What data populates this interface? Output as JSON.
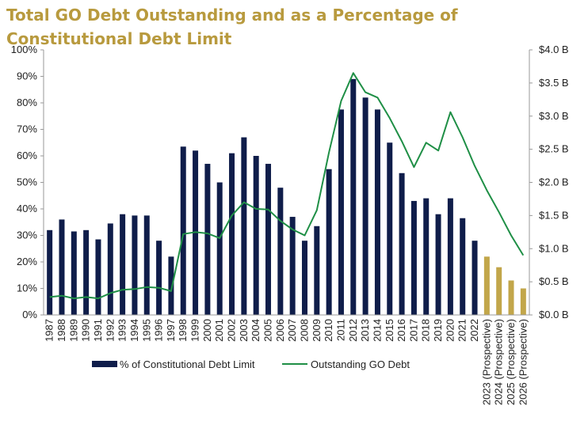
{
  "chart_data": {
    "type": "bar",
    "title": "Total GO Debt Outstanding and as a Percentage of Constitutional Debt Limit",
    "categories": [
      "1987",
      "1988",
      "1989",
      "1990",
      "1991",
      "1992",
      "1993",
      "1994",
      "1995",
      "1996",
      "1997",
      "1998",
      "1999",
      "2000",
      "2001",
      "2002",
      "2003",
      "2004",
      "2005",
      "2006",
      "2007",
      "2008",
      "2009",
      "2010",
      "2011",
      "2012",
      "2013",
      "2014",
      "2015",
      "2016",
      "2017",
      "2018",
      "2019",
      "2020",
      "2021",
      "2022",
      "2023 (Prospective)",
      "2024 (Prospective)",
      "2025 (Prospective)",
      "2026 (Prospective)"
    ],
    "series": [
      {
        "name": "% of Constitutional Debt Limit",
        "axis": "left",
        "kind": "bar",
        "values": [
          32,
          36,
          31.5,
          32,
          28.5,
          34.5,
          38,
          37.5,
          37.5,
          28,
          22,
          63.5,
          62,
          57,
          50,
          61,
          67,
          60,
          57,
          48,
          37,
          28,
          33.5,
          55,
          77.5,
          89,
          82,
          77.5,
          65,
          53.5,
          43,
          44,
          38,
          44,
          36.5,
          28,
          22,
          18,
          13,
          10
        ]
      },
      {
        "name": "Outstanding GO Debt",
        "axis": "right",
        "kind": "line",
        "values": [
          0.27,
          0.29,
          0.25,
          0.27,
          0.25,
          0.33,
          0.38,
          0.39,
          0.42,
          0.41,
          0.36,
          1.22,
          1.25,
          1.23,
          1.16,
          1.5,
          1.7,
          1.6,
          1.59,
          1.42,
          1.29,
          1.2,
          1.58,
          2.45,
          3.23,
          3.65,
          3.36,
          3.28,
          2.97,
          2.62,
          2.23,
          2.6,
          2.48,
          3.06,
          2.68,
          2.25,
          1.88,
          1.55,
          1.2,
          0.9
        ]
      }
    ],
    "prospective_from_index": 36,
    "yleft": {
      "lim": [
        0,
        100
      ],
      "ticks": [
        "0%",
        "10%",
        "20%",
        "30%",
        "40%",
        "50%",
        "60%",
        "70%",
        "80%",
        "90%",
        "100%"
      ]
    },
    "yright": {
      "lim": [
        0,
        4
      ],
      "ticks": [
        "$0.0 B",
        "$0.5 B",
        "$1.0 B",
        "$1.5 B",
        "$2.0 B",
        "$2.5 B",
        "$3.0 B",
        "$3.5 B",
        "$4.0 B"
      ]
    },
    "grid": false,
    "legend": "bottom-left",
    "colors": {
      "bar": "#0f1d4a",
      "bar_prospective": "#c2a64a",
      "line": "#1f8f46",
      "title": "#b89a3e"
    }
  }
}
